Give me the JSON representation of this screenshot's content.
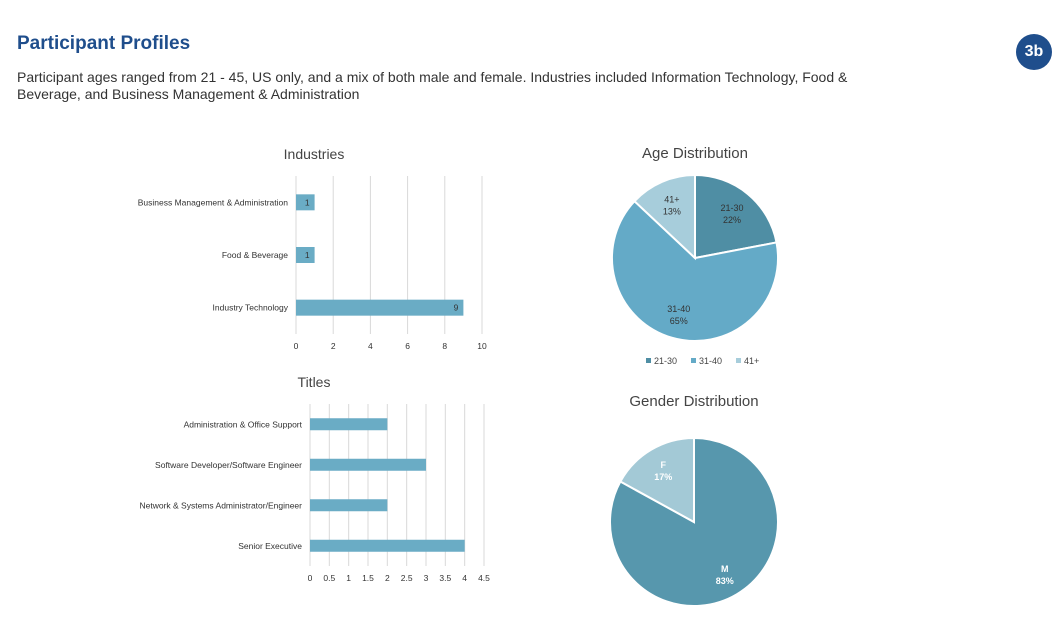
{
  "header": {
    "title": "Participant Profiles",
    "badge": "3b",
    "intro": "Participant ages ranged from 21 - 45, US only, and a mix of both male and female. Industries included Information Technology, Food & Beverage, and Business Management & Administration"
  },
  "colors": {
    "title": "#1f4e8c",
    "bar": "#6aacc5",
    "grid": "#d9d9d9",
    "age": [
      "#4f8ea4",
      "#64aac7",
      "#a7cddb"
    ],
    "gender": [
      "#5797ad",
      "#a3c9d6"
    ]
  },
  "chart_data": [
    {
      "id": "industries",
      "type": "bar",
      "orientation": "horizontal",
      "title": "Industries",
      "categories": [
        "Business Management & Administration",
        "Food & Beverage",
        "Industry Technology"
      ],
      "values": [
        1,
        1,
        9
      ],
      "value_labels": [
        "1",
        "1",
        "9"
      ],
      "xlim": [
        0,
        10
      ],
      "xticks": [
        "0",
        "2",
        "4",
        "6",
        "8",
        "10"
      ],
      "xlabel": "",
      "ylabel": "",
      "grid": true
    },
    {
      "id": "titles",
      "type": "bar",
      "orientation": "horizontal",
      "title": "Titles",
      "categories": [
        "Administration & Office Support",
        "Software Developer/Software Engineer",
        "Network & Systems Administrator/Engineer",
        "Senior Executive"
      ],
      "values": [
        2,
        3,
        2,
        4
      ],
      "xlim": [
        0,
        4.5
      ],
      "xticks": [
        "0",
        "0.5",
        "1",
        "1.5",
        "2",
        "2.5",
        "3",
        "3.5",
        "4",
        "4.5"
      ],
      "xlabel": "",
      "ylabel": "",
      "grid": true
    },
    {
      "id": "age",
      "type": "pie",
      "title": "Age Distribution",
      "labels": [
        "21-30",
        "31-40",
        "41+"
      ],
      "values": [
        22,
        65,
        13
      ],
      "value_labels": [
        "22%",
        "65%",
        "13%"
      ],
      "legend": "bottom"
    },
    {
      "id": "gender",
      "type": "pie",
      "title": "Gender Distribution",
      "labels": [
        "M",
        "F"
      ],
      "values": [
        83,
        17
      ],
      "value_labels": [
        "83%",
        "17%"
      ],
      "legend": "none"
    }
  ]
}
